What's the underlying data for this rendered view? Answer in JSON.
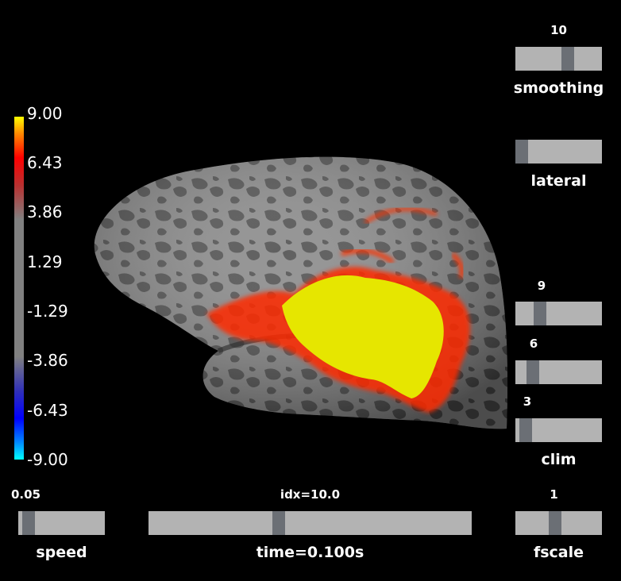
{
  "colorbar": {
    "ticks": [
      "9.00",
      "6.43",
      "3.86",
      "1.29",
      "-1.29",
      "-3.86",
      "-6.43",
      "-9.00"
    ]
  },
  "sliders": {
    "smoothing": {
      "value": "10",
      "label": "smoothing",
      "fraction": 0.62
    },
    "lateral": {
      "label": "lateral",
      "fraction": 0.0
    },
    "clim_high": {
      "value": "9",
      "fraction": 0.25
    },
    "clim_mid": {
      "value": "6",
      "fraction": 0.15
    },
    "clim_low": {
      "value": "3",
      "fraction": 0.05
    },
    "clim_label": "clim",
    "speed": {
      "value": "0.05",
      "label": "speed",
      "fraction": 0.05
    },
    "time": {
      "value": "idx=10.0",
      "label": "time=0.100s",
      "fraction": 0.4
    },
    "fscale": {
      "value": "1",
      "label": "fscale",
      "fraction": 0.45
    }
  },
  "colors": {
    "background": "#000000",
    "slider_track": "#b3b3b3",
    "slider_handle": "#6b6f75",
    "cortex_light": "#8c8c8c",
    "cortex_dark": "#505050",
    "activation_high": "#e6e600",
    "activation_mid": "#ff2200"
  }
}
